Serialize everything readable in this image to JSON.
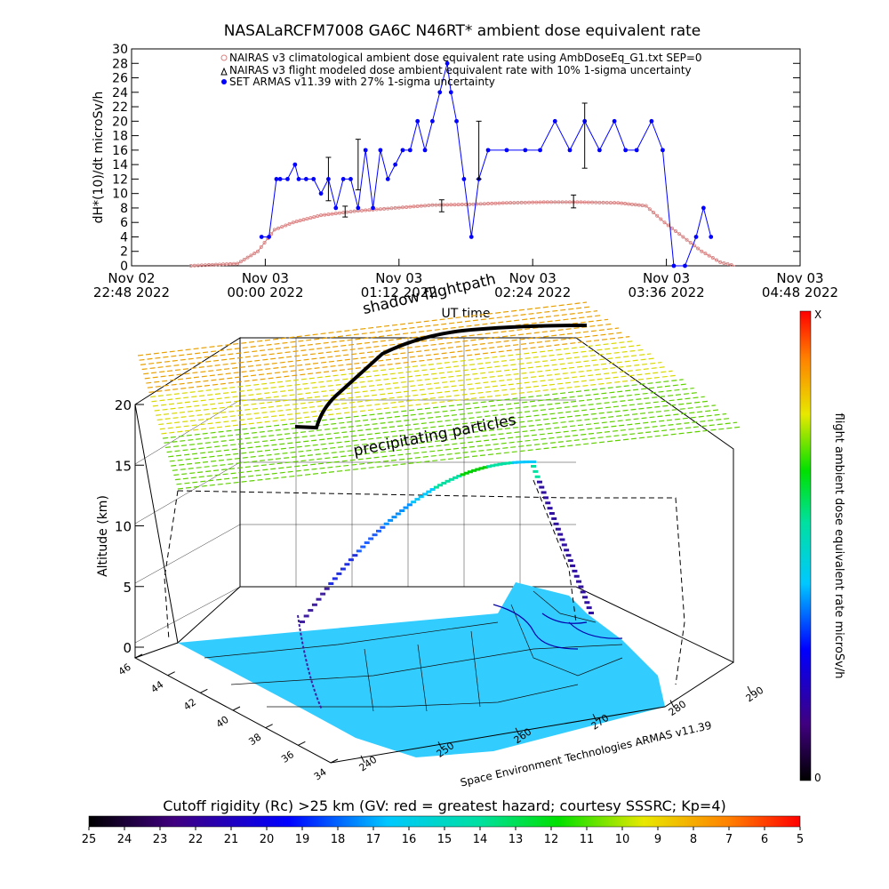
{
  "title": "NASALaRCFM7008  GA6C N46RT* ambient dose equivalent rate",
  "legend": [
    "NAIRAS v3 climatological ambient dose equivalent rate using AmbDoseEq_G1.txt SEP=0",
    "NAIRAS v3 flight modeled dose ambient equivalent rate with 10% 1-sigma uncertainty",
    "SET ARMAS v11.39 with 27% 1-sigma uncertainty"
  ],
  "colors": {
    "nairas": "#d88080",
    "armas": "#0000ff",
    "axis": "#000000",
    "surface": "#33ccff"
  },
  "chart_data": [
    {
      "type": "line",
      "ylabel": "dH*(10)/dt microSv/h",
      "xlabel": "UT time",
      "ylim": [
        0,
        30
      ],
      "yticks": [
        "0",
        "2",
        "4",
        "6",
        "8",
        "10",
        "12",
        "14",
        "16",
        "18",
        "20",
        "22",
        "24",
        "26",
        "28",
        "30"
      ],
      "xlim": [
        "2022-11-02T22:48",
        "2022-11-03T04:48"
      ],
      "xticks": [
        {
          "line1": "Nov 02",
          "line2": "22:48 2022"
        },
        {
          "line1": "Nov 03",
          "line2": "00:00 2022"
        },
        {
          "line1": "Nov 03",
          "line2": "01:12 2022"
        },
        {
          "line1": "Nov 03",
          "line2": "02:24 2022"
        },
        {
          "line1": "Nov 03",
          "line2": "03:36 2022"
        },
        {
          "line1": "Nov 03",
          "line2": "04:48 2022"
        }
      ],
      "series": [
        {
          "name": "NAIRAS v3 climatological ambient dose equivalent rate using AmbDoseEq_G1.txt SEP=0",
          "x": [
            "2022-11-02T23:20",
            "2022-11-02T23:45",
            "2022-11-02T23:56",
            "2022-11-03T00:05",
            "2022-11-03T00:15",
            "2022-11-03T00:30",
            "2022-11-03T00:50",
            "2022-11-03T01:10",
            "2022-11-03T01:30",
            "2022-11-03T01:50",
            "2022-11-03T02:10",
            "2022-11-03T02:30",
            "2022-11-03T02:50",
            "2022-11-03T03:10",
            "2022-11-03T03:25",
            "2022-11-03T03:35",
            "2022-11-03T03:45",
            "2022-11-03T03:55",
            "2022-11-03T04:05",
            "2022-11-03T04:13"
          ],
          "values": [
            0,
            0.3,
            2,
            5,
            6,
            7,
            7.6,
            8,
            8.4,
            8.5,
            8.7,
            8.8,
            8.8,
            8.7,
            8.3,
            6,
            4,
            2,
            0.5,
            0
          ]
        },
        {
          "name": "NAIRAS v3 flight modeled dose ambient equivalent rate with 10% 1-sigma uncertainty",
          "x": [
            "2022-11-03T00:43",
            "2022-11-03T01:35",
            "2022-11-03T02:46"
          ],
          "values": [
            7.5,
            8.3,
            8.9
          ]
        },
        {
          "name": "SET ARMAS v11.39 with 27% 1-sigma uncertainty",
          "x": [
            "2022-11-02T23:58",
            "2022-11-03T00:02",
            "2022-11-03T00:06",
            "2022-11-03T00:08",
            "2022-11-03T00:12",
            "2022-11-03T00:16",
            "2022-11-03T00:18",
            "2022-11-03T00:22",
            "2022-11-03T00:26",
            "2022-11-03T00:30",
            "2022-11-03T00:34",
            "2022-11-03T00:38",
            "2022-11-03T00:42",
            "2022-11-03T00:46",
            "2022-11-03T00:50",
            "2022-11-03T00:54",
            "2022-11-03T00:58",
            "2022-11-03T01:02",
            "2022-11-03T01:06",
            "2022-11-03T01:10",
            "2022-11-03T01:14",
            "2022-11-03T01:18",
            "2022-11-03T01:22",
            "2022-11-03T01:26",
            "2022-11-03T01:30",
            "2022-11-03T01:34",
            "2022-11-03T01:38",
            "2022-11-03T01:40",
            "2022-11-03T01:43",
            "2022-11-03T01:47",
            "2022-11-03T01:51",
            "2022-11-03T01:55",
            "2022-11-03T02:00",
            "2022-11-03T02:10",
            "2022-11-03T02:20",
            "2022-11-03T02:28",
            "2022-11-03T02:36",
            "2022-11-03T02:44",
            "2022-11-03T02:52",
            "2022-11-03T03:00",
            "2022-11-03T03:08",
            "2022-11-03T03:14",
            "2022-11-03T03:20",
            "2022-11-03T03:28",
            "2022-11-03T03:34",
            "2022-11-03T03:40",
            "2022-11-03T03:46",
            "2022-11-03T03:52",
            "2022-11-03T03:56",
            "2022-11-03T04:00"
          ],
          "values": [
            4,
            4,
            12,
            12,
            12,
            14,
            12,
            12,
            12,
            10,
            12,
            8,
            12,
            12,
            8,
            16,
            8,
            16,
            12,
            14,
            16,
            16,
            20,
            16,
            20,
            24,
            28,
            24,
            20,
            12,
            4,
            12,
            16,
            16,
            16,
            16,
            20,
            16,
            20,
            16,
            20,
            16,
            16,
            20,
            16,
            0,
            0,
            4,
            8,
            4
          ]
        }
      ]
    },
    {
      "type": "scatter",
      "title": "shadow flightpath",
      "zlabel": "Altitude (km)",
      "zticks": [
        "0",
        "5",
        "10",
        "15",
        "20"
      ],
      "zlim": [
        0,
        20
      ],
      "lat_ticks": [
        "46",
        "44",
        "42",
        "40",
        "38",
        "36",
        "34"
      ],
      "lon_ticks": [
        "240",
        "250",
        "260",
        "270",
        "280",
        "290"
      ],
      "x_lon": [
        242,
        244,
        246,
        248,
        250,
        253,
        256,
        260,
        264,
        268,
        272,
        275,
        277,
        279
      ],
      "y_lat": [
        37.5,
        38.0,
        38.5,
        39.2,
        40.0,
        40.8,
        41.5,
        42.0,
        42.4,
        42.6,
        42.8,
        42.9,
        43.0,
        43.0
      ],
      "z_alt_km": [
        0,
        4,
        8,
        11,
        12.3,
        13.0,
        13.5,
        13.9,
        14.2,
        14.4,
        14.5,
        14.5,
        12.0,
        0
      ],
      "annotations": [
        "precipitating particles",
        "Space Environment Technologies ARMAS v11.39"
      ],
      "colorbar_label": "flight ambient dose equivalent rate microSv/h",
      "colorbar_range": [
        "0",
        "X"
      ]
    }
  ],
  "bottom_colorbar": {
    "label": "Cutoff rigidity (Rc) >25 km (GV: red = greatest hazard; courtesy SSSRC; Kp=4)",
    "ticks": [
      "25",
      "24",
      "23",
      "22",
      "21",
      "20",
      "19",
      "18",
      "17",
      "16",
      "15",
      "14",
      "13",
      "12",
      "11",
      "10",
      "9",
      "8",
      "7",
      "6",
      "5"
    ]
  }
}
